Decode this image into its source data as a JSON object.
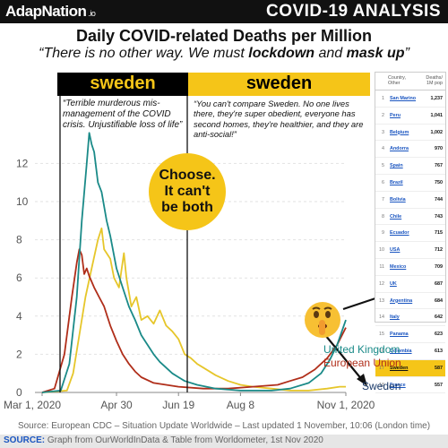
{
  "header": {
    "brand": "AdapNation",
    "brand_suffix": ".io",
    "title": "COVID-19 ANALYSIS"
  },
  "quote": {
    "pre": "“There is no other way. We must ",
    "b1": "lockdown",
    "mid": " and ",
    "b2": "mask up",
    "post": "”"
  },
  "panels": {
    "left_label": "sweden",
    "right_label": "sweden",
    "left_note": "“Terrible murderous mis-management of the COVID crisis. Unjustifiable loss of life”",
    "right_note": "“You can't compare Sweden. No one lives there, they're super obedient, everyone has second homes, they're healthier, and they are anti-social!”"
  },
  "callout": {
    "line1": "Choose.",
    "line2": "It can't",
    "line3": "be both"
  },
  "table": {
    "col1": "Country,",
    "col1b": "Other",
    "col2": "Deaths/",
    "col2b": "1M pop",
    "rows": [
      {
        "rank": "1",
        "country": "San Marino",
        "value": "1,237"
      },
      {
        "rank": "2",
        "country": "Peru",
        "value": "1,041"
      },
      {
        "rank": "3",
        "country": "Belgium",
        "value": "1,002"
      },
      {
        "rank": "4",
        "country": "Andorra",
        "value": "970"
      },
      {
        "rank": "5",
        "country": "Spain",
        "value": "767"
      },
      {
        "rank": "6",
        "country": "Brazil",
        "value": "750"
      },
      {
        "rank": "7",
        "country": "Bolivia",
        "value": "744"
      },
      {
        "rank": "8",
        "country": "Chile",
        "value": "743"
      },
      {
        "rank": "9",
        "country": "Ecuador",
        "value": "715"
      },
      {
        "rank": "10",
        "country": "USA",
        "value": "712"
      },
      {
        "rank": "11",
        "country": "Mexico",
        "value": "709"
      },
      {
        "rank": "12",
        "country": "UK",
        "value": "687"
      },
      {
        "rank": "13",
        "country": "Argentina",
        "value": "684"
      },
      {
        "rank": "14",
        "country": "Italy",
        "value": "642"
      },
      {
        "rank": "15",
        "country": "Panama",
        "value": "623"
      },
      {
        "rank": "16",
        "country": "Colombia",
        "value": "613"
      },
      {
        "rank": "17",
        "country": "Sweden",
        "value": "587",
        "highlight": true
      },
      {
        "rank": "18",
        "country": "France",
        "value": "557"
      }
    ]
  },
  "footer": {
    "source_line": "Source: European CDC – Situation Update Worldwide – Last updated 1 November, 10:06 (London time)",
    "source_label": "SOURCE:",
    "source_text": " Graph from OurWorldInData & Table from Worldometer, 1st Nov 2020"
  },
  "colors": {
    "uk": "#1a8a88",
    "eu": "#b02e1a",
    "sweden": "#e6c62a",
    "accent": "#f5c518"
  },
  "chart_data": {
    "type": "line",
    "title": "Daily COVID-related Deaths per Million",
    "xlabel": "",
    "ylabel": "",
    "x_ticks": [
      "Mar 1, 2020",
      "Apr 30",
      "Jun 19",
      "Aug 8",
      "Nov 1, 2020"
    ],
    "x_tick_days": [
      0,
      60,
      110,
      160,
      245
    ],
    "y_ticks": [
      0,
      2,
      4,
      6,
      8,
      10,
      12
    ],
    "ylim": [
      0,
      14
    ],
    "xlim": [
      0,
      245
    ],
    "grid": true,
    "series": [
      {
        "name": "United Kingdom",
        "color": "#1a8a88",
        "points": [
          [
            0,
            0
          ],
          [
            15,
            0.1
          ],
          [
            22,
            1.5
          ],
          [
            28,
            5
          ],
          [
            32,
            9
          ],
          [
            36,
            12
          ],
          [
            38,
            13.6
          ],
          [
            40,
            13
          ],
          [
            42,
            12.6
          ],
          [
            45,
            11
          ],
          [
            48,
            10.5
          ],
          [
            52,
            9
          ],
          [
            55,
            8.2
          ],
          [
            60,
            6.5
          ],
          [
            65,
            5.5
          ],
          [
            70,
            4.5
          ],
          [
            75,
            3.8
          ],
          [
            80,
            3
          ],
          [
            85,
            2.5
          ],
          [
            90,
            2
          ],
          [
            95,
            1.6
          ],
          [
            100,
            1.3
          ],
          [
            105,
            1
          ],
          [
            110,
            0.8
          ],
          [
            115,
            0.6
          ],
          [
            125,
            0.4
          ],
          [
            140,
            0.2
          ],
          [
            160,
            0.1
          ],
          [
            185,
            0.1
          ],
          [
            200,
            0.2
          ],
          [
            215,
            0.5
          ],
          [
            225,
            1
          ],
          [
            232,
            1.7
          ],
          [
            238,
            2.5
          ],
          [
            245,
            3.8
          ]
        ]
      },
      {
        "name": "European Union",
        "color": "#b02e1a",
        "points": [
          [
            0,
            0
          ],
          [
            10,
            0.2
          ],
          [
            18,
            2
          ],
          [
            24,
            5
          ],
          [
            28,
            6.8
          ],
          [
            30,
            7.5
          ],
          [
            32,
            7.2
          ],
          [
            34,
            6.2
          ],
          [
            36,
            6.5
          ],
          [
            38,
            6.1
          ],
          [
            42,
            5.5
          ],
          [
            46,
            5
          ],
          [
            50,
            4.5
          ],
          [
            55,
            3.5
          ],
          [
            60,
            2.7
          ],
          [
            65,
            2
          ],
          [
            70,
            1.5
          ],
          [
            75,
            1.1
          ],
          [
            80,
            0.8
          ],
          [
            90,
            0.5
          ],
          [
            100,
            0.4
          ],
          [
            110,
            0.3
          ],
          [
            130,
            0.2
          ],
          [
            150,
            0.2
          ],
          [
            170,
            0.3
          ],
          [
            190,
            0.4
          ],
          [
            200,
            0.6
          ],
          [
            210,
            0.8
          ],
          [
            220,
            1.2
          ],
          [
            230,
            1.8
          ],
          [
            238,
            2.5
          ],
          [
            245,
            3.4
          ]
        ]
      },
      {
        "name": "Sweden",
        "color": "#e6c62a",
        "points": [
          [
            0,
            0
          ],
          [
            20,
            0.1
          ],
          [
            25,
            1
          ],
          [
            30,
            3
          ],
          [
            35,
            5
          ],
          [
            40,
            6.5
          ],
          [
            45,
            8
          ],
          [
            48,
            8.6
          ],
          [
            50,
            7.5
          ],
          [
            55,
            7
          ],
          [
            58,
            6
          ],
          [
            62,
            5.5
          ],
          [
            66,
            7.3
          ],
          [
            68,
            6
          ],
          [
            72,
            4.5
          ],
          [
            76,
            5
          ],
          [
            80,
            3.8
          ],
          [
            85,
            4
          ],
          [
            90,
            3.6
          ],
          [
            95,
            4.3
          ],
          [
            100,
            3.5
          ],
          [
            105,
            3.2
          ],
          [
            110,
            2.8
          ],
          [
            115,
            2
          ],
          [
            120,
            1.8
          ],
          [
            125,
            1.5
          ],
          [
            130,
            1.3
          ],
          [
            140,
            0.9
          ],
          [
            150,
            0.6
          ],
          [
            160,
            0.4
          ],
          [
            170,
            0.3
          ],
          [
            185,
            0.2
          ],
          [
            200,
            0.1
          ],
          [
            215,
            0.1
          ],
          [
            230,
            0.2
          ],
          [
            240,
            0.3
          ],
          [
            245,
            0.3
          ]
        ]
      }
    ]
  }
}
